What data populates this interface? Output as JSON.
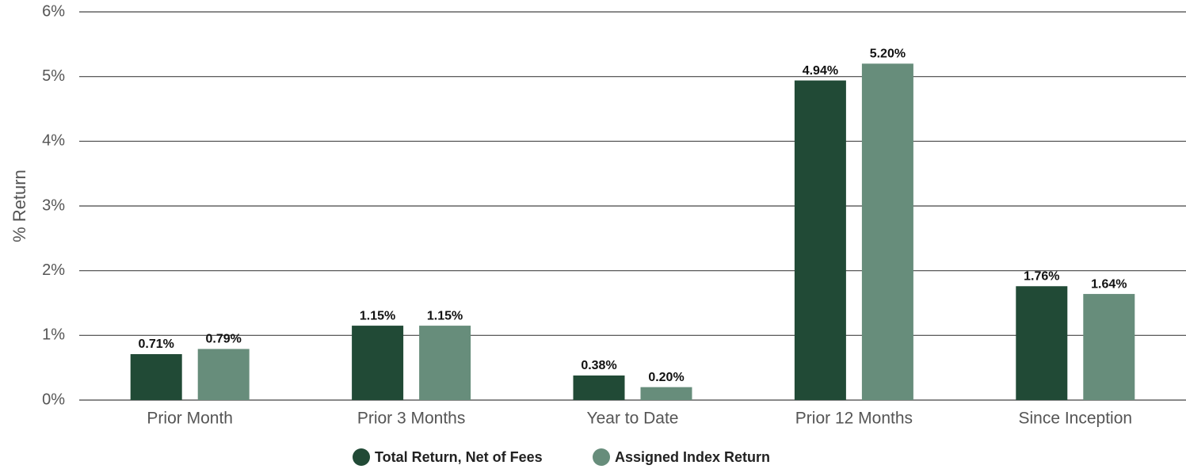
{
  "chart_data": {
    "type": "bar",
    "y_label": "% Return",
    "categories": [
      "Prior Month",
      "Prior 3 Months",
      "Year to Date",
      "Prior 12 Months",
      "Since Inception"
    ],
    "series": [
      {
        "name": "Total Return, Net of Fees",
        "color": "#214a36",
        "values": [
          0.71,
          1.15,
          0.38,
          4.94,
          1.76
        ],
        "value_labels": [
          "0.71%",
          "1.15%",
          "0.38%",
          "4.94%",
          "1.76%"
        ]
      },
      {
        "name": "Assigned Index Return",
        "color": "#678d7b",
        "values": [
          0.79,
          1.15,
          0.2,
          5.2,
          1.64
        ],
        "value_labels": [
          "0.79%",
          "1.15%",
          "0.20%",
          "5.20%",
          "1.64%"
        ]
      }
    ],
    "ylim": [
      0,
      6
    ],
    "yticks": [
      {
        "value": 0,
        "label": "0%"
      },
      {
        "value": 1,
        "label": "1%"
      },
      {
        "value": 2,
        "label": "2%"
      },
      {
        "value": 3,
        "label": "3%"
      },
      {
        "value": 4,
        "label": "4%"
      },
      {
        "value": 5,
        "label": "5%"
      },
      {
        "value": 6,
        "label": "6%"
      }
    ],
    "grid": true
  }
}
